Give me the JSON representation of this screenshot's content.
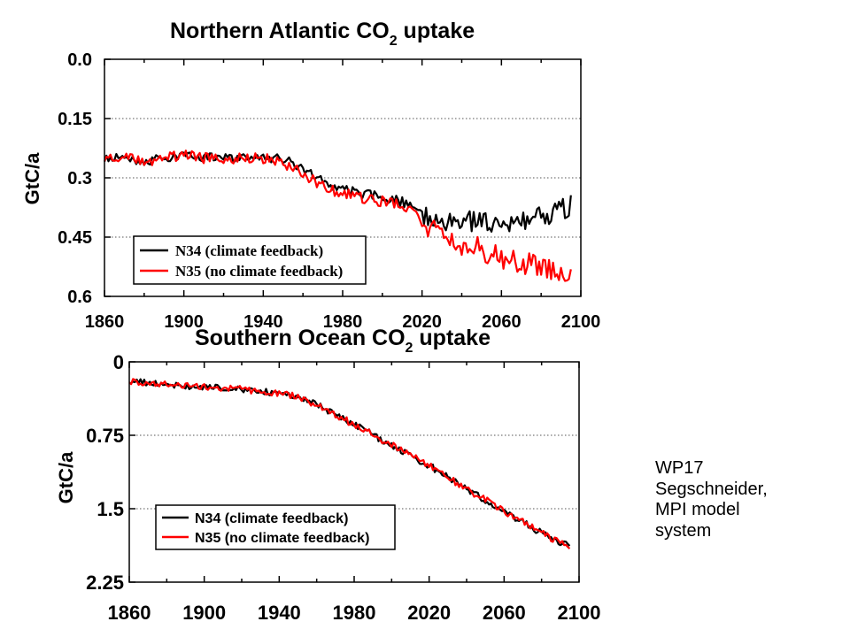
{
  "caption": {
    "lines": [
      "WP17",
      "Segschneider,",
      "MPI model",
      "system"
    ]
  },
  "colors": {
    "n34": "#000000",
    "n35": "#ff0000",
    "grid": "#555555"
  },
  "chart_data": [
    {
      "type": "line",
      "title": {
        "main": "Northern Atlantic CO",
        "sub": "2",
        "tail": " uptake"
      },
      "ylabel": "GtC/a",
      "xlim": [
        1860,
        2100
      ],
      "ylim": [
        0.0,
        0.6
      ],
      "y_inverted": true,
      "xticks": [
        1860,
        1900,
        1940,
        1980,
        2020,
        2060,
        2100
      ],
      "xtick_labels": [
        "1860",
        "1900",
        "1940",
        "1980",
        "2020",
        "2060",
        "2100"
      ],
      "yticks": [
        0.0,
        0.15,
        0.3,
        0.45,
        0.6
      ],
      "ytick_labels": [
        "0.0",
        "0.15",
        "0.3",
        "0.45",
        "0.6"
      ],
      "grid": "horizontal dotted",
      "legend_position": "bottom-left",
      "series": [
        {
          "name": "N34 (climate feedback)",
          "color": "#000000",
          "x": [
            1860,
            1870,
            1880,
            1890,
            1900,
            1910,
            1920,
            1930,
            1940,
            1950,
            1960,
            1970,
            1980,
            1990,
            2000,
            2010,
            2020,
            2030,
            2040,
            2050,
            2060,
            2070,
            2080,
            2090,
            2095
          ],
          "y": [
            0.25,
            0.25,
            0.26,
            0.25,
            0.24,
            0.25,
            0.25,
            0.25,
            0.25,
            0.25,
            0.28,
            0.31,
            0.33,
            0.34,
            0.35,
            0.36,
            0.39,
            0.41,
            0.41,
            0.41,
            0.41,
            0.41,
            0.4,
            0.38,
            0.37
          ]
        },
        {
          "name": "N35 (no climate feedback)",
          "color": "#ff0000",
          "x": [
            1860,
            1870,
            1880,
            1890,
            1900,
            1910,
            1920,
            1930,
            1940,
            1950,
            1960,
            1970,
            1980,
            1990,
            2000,
            2010,
            2020,
            2030,
            2040,
            2050,
            2060,
            2070,
            2080,
            2090,
            2095
          ],
          "y": [
            0.25,
            0.25,
            0.26,
            0.25,
            0.24,
            0.25,
            0.25,
            0.25,
            0.25,
            0.26,
            0.29,
            0.32,
            0.34,
            0.35,
            0.36,
            0.37,
            0.41,
            0.45,
            0.47,
            0.48,
            0.5,
            0.51,
            0.53,
            0.53,
            0.54
          ]
        }
      ]
    },
    {
      "type": "line",
      "title": {
        "main": "Southern Ocean CO",
        "sub": "2",
        "tail": " uptake"
      },
      "ylabel": "GtC/a",
      "xlim": [
        1860,
        2100
      ],
      "ylim": [
        0.0,
        2.25
      ],
      "y_inverted": true,
      "xticks": [
        1860,
        1900,
        1940,
        1980,
        2020,
        2060,
        2100
      ],
      "xtick_labels": [
        "1860",
        "1900",
        "1940",
        "1980",
        "2020",
        "2060",
        "2100"
      ],
      "yticks": [
        0.0,
        0.75,
        1.5,
        2.25
      ],
      "ytick_labels": [
        "0",
        "0.75",
        "1.5",
        "2.25"
      ],
      "grid": "horizontal dotted",
      "legend_position": "bottom-left",
      "series": [
        {
          "name": "N34 (climate feedback)",
          "color": "#000000",
          "x": [
            1860,
            1880,
            1900,
            1920,
            1940,
            1950,
            1960,
            1980,
            2000,
            2020,
            2040,
            2060,
            2080,
            2090,
            2095
          ],
          "y": [
            0.2,
            0.23,
            0.26,
            0.28,
            0.32,
            0.35,
            0.44,
            0.64,
            0.85,
            1.06,
            1.3,
            1.52,
            1.75,
            1.85,
            1.88
          ]
        },
        {
          "name": "N35 (no climate feedback)",
          "color": "#ff0000",
          "x": [
            1860,
            1880,
            1900,
            1920,
            1940,
            1950,
            1960,
            1980,
            2000,
            2020,
            2040,
            2060,
            2080,
            2090,
            2095
          ],
          "y": [
            0.2,
            0.23,
            0.26,
            0.28,
            0.32,
            0.35,
            0.44,
            0.64,
            0.85,
            1.06,
            1.3,
            1.52,
            1.75,
            1.85,
            1.88
          ]
        }
      ]
    }
  ]
}
